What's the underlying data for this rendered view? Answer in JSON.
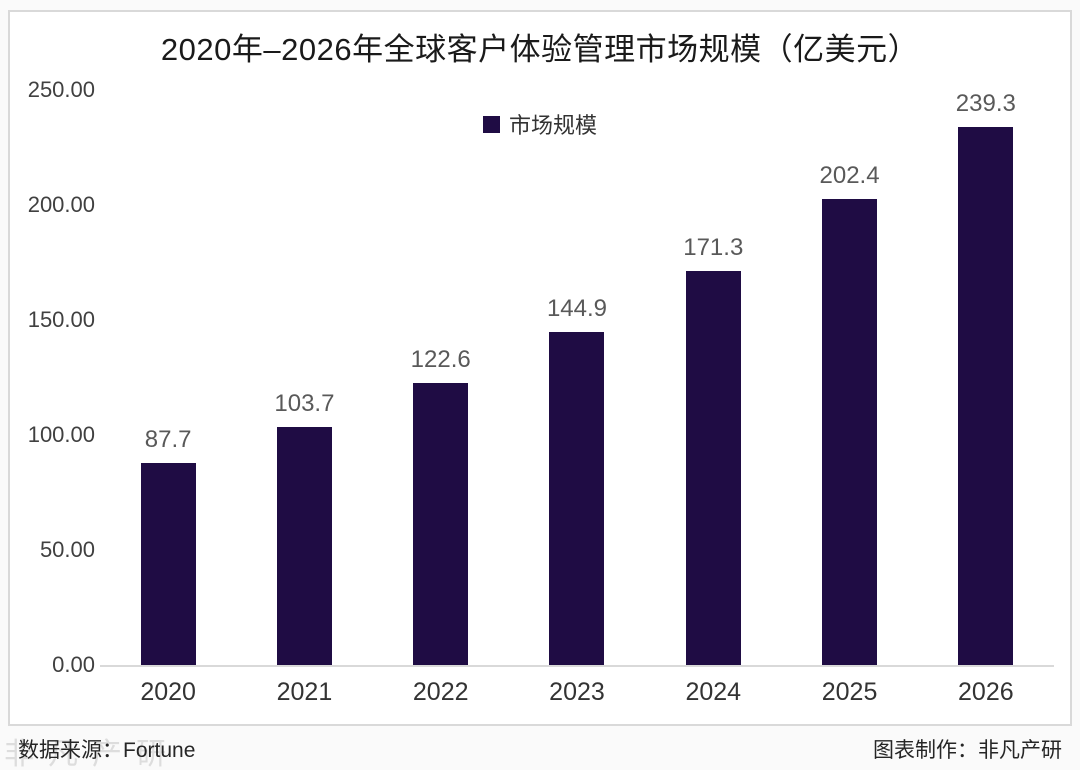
{
  "page": {
    "title": "2020年–2026年全球客户体验管理市场规模（亿美元）"
  },
  "legend": {
    "label": "市场规模"
  },
  "chart_data": {
    "type": "bar",
    "title": "2020年–2026年全球客户体验管理市场规模（亿美元）",
    "categories": [
      "2020",
      "2021",
      "2022",
      "2023",
      "2024",
      "2025",
      "2026"
    ],
    "series": [
      {
        "name": "市场规模",
        "values": [
          87.7,
          103.7,
          122.6,
          144.9,
          171.3,
          202.4,
          239.3
        ]
      }
    ],
    "value_labels": [
      "87.7",
      "103.7",
      "122.6",
      "144.9",
      "171.3",
      "202.4",
      "239.3"
    ],
    "ytick_labels": [
      "250.00",
      "200.00",
      "150.00",
      "100.00",
      "50.00",
      "0.00"
    ],
    "ylim": [
      0,
      250
    ],
    "ytick_step": 50,
    "grid": false,
    "legend_position": "top-center",
    "bar_color": "#1f0c44"
  },
  "colors": {
    "bar": "#1f0c44",
    "border": "#d9d9d9",
    "baseline": "#d9d9d9",
    "title_text": "#1a1a1a",
    "value_label_text": "#595959",
    "axis_label_text": "#404040"
  },
  "footer": {
    "source": "数据来源：Fortune",
    "credit": "图表制作：非凡产研",
    "watermark": "非凡产研"
  }
}
